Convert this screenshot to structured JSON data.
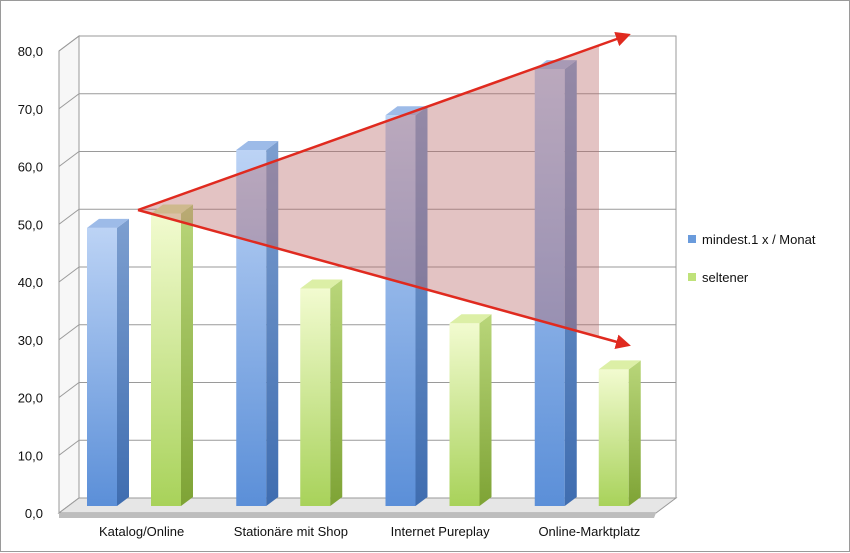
{
  "chart_data": {
    "type": "bar",
    "categories": [
      "Katalog/Online",
      "Stationäre mit Shop",
      "Internet Pureplay",
      "Online-Marktplatz"
    ],
    "series": [
      {
        "name": "mindest.1 x / Monat",
        "values": [
          48.5,
          62.0,
          68.0,
          76.0
        ],
        "color": "#6a9bdc"
      },
      {
        "name": "seltener",
        "values": [
          51.0,
          38.0,
          32.0,
          24.0
        ],
        "color": "#bfe27a"
      }
    ],
    "ylim": [
      0,
      80
    ],
    "yticks": [
      "0,0",
      "10,0",
      "20,0",
      "30,0",
      "40,0",
      "50,0",
      "60,0",
      "70,0",
      "80,0"
    ],
    "grid": true,
    "legend": "right",
    "annotation": {
      "type": "widening-wedge-arrows",
      "color": "#e02a1f",
      "fill": "#b86a6a"
    }
  }
}
